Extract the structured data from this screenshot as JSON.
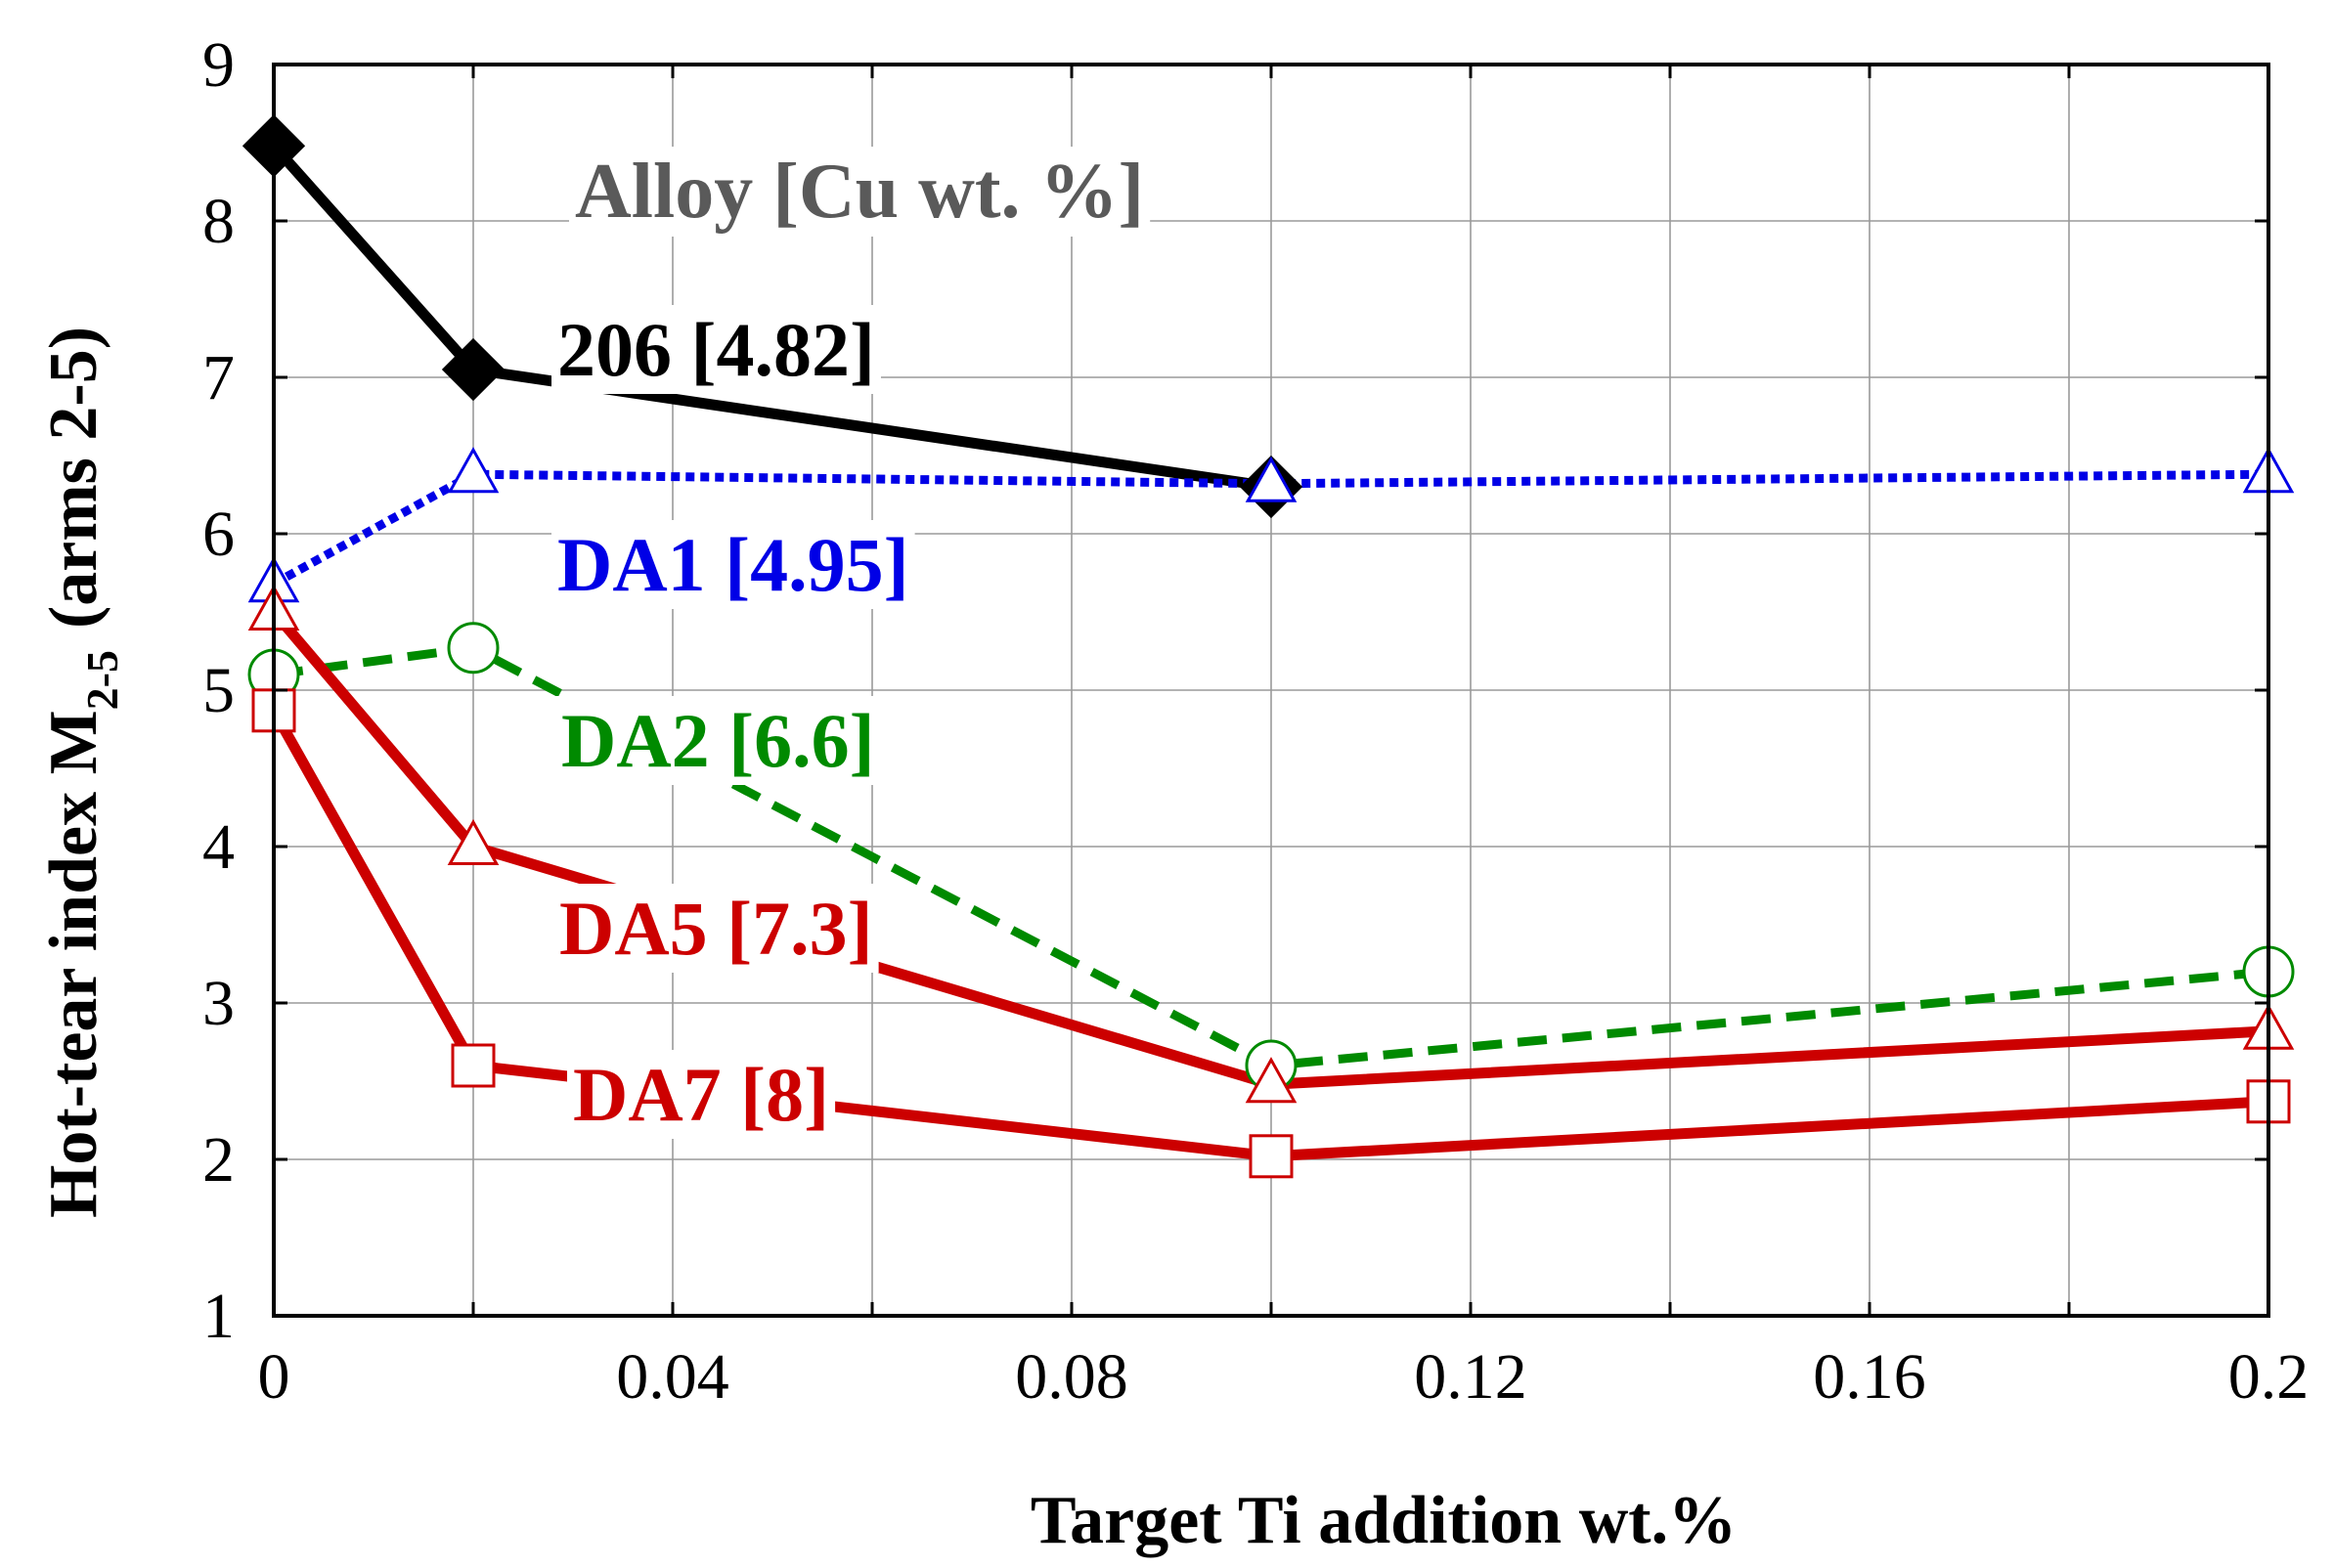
{
  "chart_data": {
    "type": "line",
    "title": "",
    "xlabel": "Target Ti addition wt.%",
    "ylabel": {
      "main": "Hot-tear index M",
      "subscript": "2-5",
      "suffix": "(arms 2-5)"
    },
    "xlim": [
      0,
      0.2
    ],
    "ylim": [
      1,
      9
    ],
    "xticks": [
      0,
      0.02,
      0.04,
      0.06,
      0.08,
      0.1,
      0.12,
      0.14,
      0.16,
      0.18,
      0.2
    ],
    "xtick_labels": [
      {
        "value": 0,
        "label": "0"
      },
      {
        "value": 0.04,
        "label": "0.04"
      },
      {
        "value": 0.08,
        "label": "0.08"
      },
      {
        "value": 0.12,
        "label": "0.12"
      },
      {
        "value": 0.16,
        "label": "0.16"
      },
      {
        "value": 0.2,
        "label": "0.2"
      }
    ],
    "yticks": [
      1,
      2,
      3,
      4,
      5,
      6,
      7,
      8,
      9
    ],
    "ytick_labels": [
      "1",
      "2",
      "3",
      "4",
      "5",
      "6",
      "7",
      "8",
      "9"
    ],
    "grid": true,
    "legend_title": "Alloy [Cu wt. %]",
    "series": [
      {
        "name": "206 [4.82]",
        "color": "#000000",
        "line": "solid",
        "marker": "diamond-filled",
        "x": [
          0,
          0.02,
          0.1
        ],
        "y": [
          8.48,
          7.05,
          6.3
        ]
      },
      {
        "name": "DA1 [4.95]",
        "color": "#0000e6",
        "line": "dotted",
        "marker": "triangle-open",
        "x": [
          0,
          0.02,
          0.1,
          0.2
        ],
        "y": [
          5.68,
          6.38,
          6.32,
          6.38
        ]
      },
      {
        "name": "DA2 [6.6]",
        "color": "#008a00",
        "line": "dashed",
        "marker": "circle-open",
        "x": [
          0,
          0.02,
          0.1,
          0.2
        ],
        "y": [
          5.1,
          5.27,
          2.6,
          3.2
        ]
      },
      {
        "name": "DA5 [7.3]",
        "color": "#cc0000",
        "line": "solid",
        "marker": "triangle-open",
        "x": [
          0,
          0.02,
          0.1,
          0.2
        ],
        "y": [
          5.5,
          4.0,
          2.48,
          2.82
        ]
      },
      {
        "name": "DA7 [8]",
        "color": "#cc0000",
        "line": "solid",
        "marker": "square-open",
        "x": [
          0,
          0.02,
          0.1,
          0.2
        ],
        "y": [
          4.87,
          2.6,
          2.02,
          2.37
        ]
      }
    ]
  }
}
